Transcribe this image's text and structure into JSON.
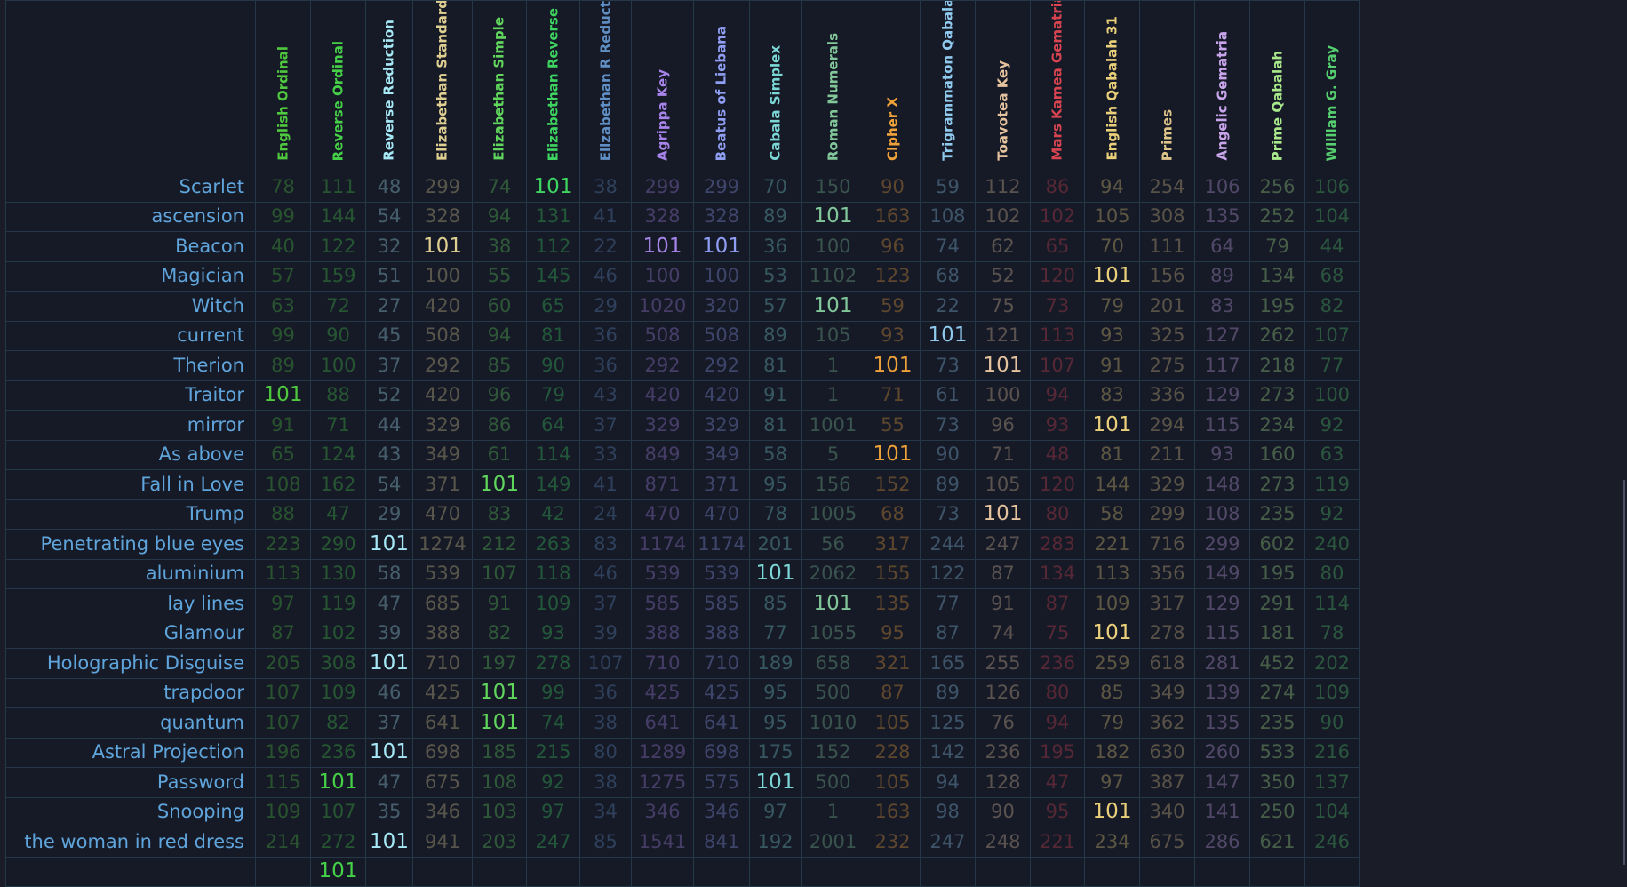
{
  "ciphers": [
    {
      "name": "English Ordinal",
      "color": "#4fc73e"
    },
    {
      "name": "Reverse Ordinal",
      "color": "#46d048"
    },
    {
      "name": "Reverse Reduction",
      "color": "#a7e8f6"
    },
    {
      "name": "Elizabethan Standard",
      "color": "#dfcf91"
    },
    {
      "name": "Elizabethan Simple",
      "color": "#61d65c"
    },
    {
      "name": "Elizabethan Reverse",
      "color": "#3ed460"
    },
    {
      "name": "Elizabethan R Reduction",
      "color": "#5f8fc4"
    },
    {
      "name": "Agrippa Key",
      "color": "#a784ea"
    },
    {
      "name": "Beatus of Liebana",
      "color": "#8f9ef3"
    },
    {
      "name": "Cabala Simplex",
      "color": "#7bd7d6"
    },
    {
      "name": "Roman Numerals",
      "color": "#82c79a"
    },
    {
      "name": "Cipher X",
      "color": "#f0a23a"
    },
    {
      "name": "Trigrammaton Qabalah",
      "color": "#8fc9ee"
    },
    {
      "name": "Toavotea Key",
      "color": "#e5c39e"
    },
    {
      "name": "Mars Kamea Gematria",
      "color": "#d94451"
    },
    {
      "name": "English Qabalah 31",
      "color": "#ead07a"
    },
    {
      "name": "Primes",
      "color": "#e0c58a"
    },
    {
      "name": "Angelic Gematria",
      "color": "#c9a6ec"
    },
    {
      "name": "Prime Qabalah",
      "color": "#a9e88b"
    },
    {
      "name": "William G. Gray",
      "color": "#56d06f"
    }
  ],
  "match_value": 101,
  "rows": [
    {
      "phrase": "Scarlet",
      "values": [
        78,
        111,
        48,
        299,
        74,
        101,
        38,
        299,
        299,
        70,
        150,
        90,
        59,
        112,
        86,
        94,
        254,
        106,
        256,
        106
      ]
    },
    {
      "phrase": "ascension",
      "values": [
        99,
        144,
        54,
        328,
        94,
        131,
        41,
        328,
        328,
        89,
        101,
        163,
        108,
        102,
        102,
        105,
        308,
        135,
        252,
        104
      ]
    },
    {
      "phrase": "Beacon",
      "values": [
        40,
        122,
        32,
        101,
        38,
        112,
        22,
        101,
        101,
        36,
        100,
        96,
        74,
        62,
        65,
        70,
        111,
        64,
        79,
        44
      ]
    },
    {
      "phrase": "Magician",
      "values": [
        57,
        159,
        51,
        100,
        55,
        145,
        46,
        100,
        100,
        53,
        1102,
        123,
        68,
        52,
        120,
        101,
        156,
        89,
        134,
        68
      ]
    },
    {
      "phrase": "Witch",
      "values": [
        63,
        72,
        27,
        420,
        60,
        65,
        29,
        1020,
        320,
        57,
        101,
        59,
        22,
        75,
        73,
        79,
        201,
        83,
        195,
        82
      ]
    },
    {
      "phrase": "current",
      "values": [
        99,
        90,
        45,
        508,
        94,
        81,
        36,
        508,
        508,
        89,
        105,
        93,
        101,
        121,
        113,
        93,
        325,
        127,
        262,
        107
      ]
    },
    {
      "phrase": "Therion",
      "values": [
        89,
        100,
        37,
        292,
        85,
        90,
        36,
        292,
        292,
        81,
        1,
        101,
        73,
        101,
        107,
        91,
        275,
        117,
        218,
        77
      ]
    },
    {
      "phrase": "Traitor",
      "values": [
        101,
        88,
        52,
        420,
        96,
        79,
        43,
        420,
        420,
        91,
        1,
        71,
        61,
        100,
        94,
        83,
        336,
        129,
        273,
        100
      ]
    },
    {
      "phrase": "mirror",
      "values": [
        91,
        71,
        44,
        329,
        86,
        64,
        37,
        329,
        329,
        81,
        1001,
        55,
        73,
        96,
        93,
        101,
        294,
        115,
        234,
        92
      ]
    },
    {
      "phrase": "As above",
      "values": [
        65,
        124,
        43,
        349,
        61,
        114,
        33,
        849,
        349,
        58,
        5,
        101,
        90,
        71,
        48,
        81,
        211,
        93,
        160,
        63
      ]
    },
    {
      "phrase": "Fall in Love",
      "values": [
        108,
        162,
        54,
        371,
        101,
        149,
        41,
        871,
        371,
        95,
        156,
        152,
        89,
        105,
        120,
        144,
        329,
        148,
        273,
        119
      ]
    },
    {
      "phrase": "Trump",
      "values": [
        88,
        47,
        29,
        470,
        83,
        42,
        24,
        470,
        470,
        78,
        1005,
        68,
        73,
        101,
        80,
        58,
        299,
        108,
        235,
        92
      ]
    },
    {
      "phrase": "Penetrating blue eyes",
      "values": [
        223,
        290,
        101,
        1274,
        212,
        263,
        83,
        1174,
        1174,
        201,
        56,
        317,
        244,
        247,
        283,
        221,
        716,
        299,
        602,
        240
      ]
    },
    {
      "phrase": "aluminium",
      "values": [
        113,
        130,
        58,
        539,
        107,
        118,
        46,
        539,
        539,
        101,
        2062,
        155,
        122,
        87,
        134,
        113,
        356,
        149,
        195,
        80
      ]
    },
    {
      "phrase": "lay lines",
      "values": [
        97,
        119,
        47,
        685,
        91,
        109,
        37,
        585,
        585,
        85,
        101,
        135,
        77,
        91,
        87,
        109,
        317,
        129,
        291,
        114
      ]
    },
    {
      "phrase": "Glamour",
      "values": [
        87,
        102,
        39,
        388,
        82,
        93,
        39,
        388,
        388,
        77,
        1055,
        95,
        87,
        74,
        75,
        101,
        278,
        115,
        181,
        78
      ]
    },
    {
      "phrase": "Holographic Disguise",
      "values": [
        205,
        308,
        101,
        710,
        197,
        278,
        107,
        710,
        710,
        189,
        658,
        321,
        165,
        255,
        236,
        259,
        618,
        281,
        452,
        202
      ]
    },
    {
      "phrase": "trapdoor",
      "values": [
        107,
        109,
        46,
        425,
        101,
        99,
        36,
        425,
        425,
        95,
        500,
        87,
        89,
        126,
        80,
        85,
        349,
        139,
        274,
        109
      ]
    },
    {
      "phrase": "quantum",
      "values": [
        107,
        82,
        37,
        641,
        101,
        74,
        38,
        641,
        641,
        95,
        1010,
        105,
        125,
        76,
        94,
        79,
        362,
        135,
        235,
        90
      ]
    },
    {
      "phrase": "Astral Projection",
      "values": [
        196,
        236,
        101,
        698,
        185,
        215,
        80,
        1289,
        698,
        175,
        152,
        228,
        142,
        236,
        195,
        182,
        630,
        260,
        533,
        216
      ]
    },
    {
      "phrase": "Password",
      "values": [
        115,
        101,
        47,
        675,
        108,
        92,
        38,
        1275,
        575,
        101,
        500,
        105,
        94,
        128,
        47,
        97,
        387,
        147,
        350,
        137
      ]
    },
    {
      "phrase": "Snooping",
      "values": [
        109,
        107,
        35,
        346,
        103,
        97,
        34,
        346,
        346,
        97,
        1,
        163,
        98,
        90,
        95,
        101,
        340,
        141,
        250,
        104
      ]
    },
    {
      "phrase": "the woman in red dress",
      "values": [
        214,
        272,
        101,
        941,
        203,
        247,
        85,
        1541,
        841,
        192,
        2001,
        232,
        247,
        248,
        221,
        234,
        675,
        286,
        621,
        246
      ]
    },
    {
      "phrase": "",
      "values": [
        null,
        101,
        null,
        null,
        null,
        null,
        null,
        null,
        null,
        null,
        null,
        null,
        null,
        null,
        null,
        null,
        null,
        null,
        null,
        null
      ]
    }
  ]
}
